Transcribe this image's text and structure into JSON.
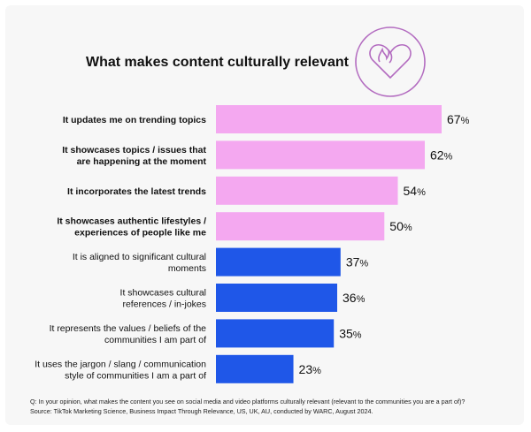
{
  "chart_data": {
    "type": "bar",
    "orientation": "horizontal",
    "title": "What makes content culturally relevant",
    "categories": [
      [
        "It updates me on trending topics"
      ],
      [
        "It showcases topics / issues that",
        "are happening at the moment"
      ],
      [
        "It incorporates the latest trends"
      ],
      [
        "It showcases authentic lifestyles /",
        "experiences of people like me"
      ],
      [
        "It is aligned to significant cultural",
        "moments"
      ],
      [
        "It showcases cultural",
        "references / in-jokes"
      ],
      [
        "It represents the values / beliefs of the",
        "communities I am part of"
      ],
      [
        "It uses the jargon / slang / communication",
        "style of communities I am a part of"
      ]
    ],
    "values": [
      67,
      62,
      54,
      50,
      37,
      36,
      35,
      23
    ],
    "value_suffix": "%",
    "bold_labels": [
      true,
      true,
      true,
      true,
      false,
      false,
      false,
      false
    ],
    "bar_colors": [
      "#f4a8f0",
      "#f4a8f0",
      "#f4a8f0",
      "#f4a8f0",
      "#1f57e8",
      "#1f57e8",
      "#1f57e8",
      "#1f57e8"
    ],
    "xlim": [
      0,
      67
    ],
    "grid": false,
    "icon": "heart-flame-icon"
  },
  "footnote": {
    "question": "Q: In your opinion, what makes the content you see on social media and video platforms culturally relevant (relevant to the communities you are a part of)?",
    "source": "Source: TikTok Marketing Science, Business Impact Through Relevance, US, UK, AU, conducted by WARC, August 2024."
  },
  "colors": {
    "pink": "#f4a8f0",
    "blue": "#1f57e8",
    "icon_stroke": "#b36cc0"
  }
}
